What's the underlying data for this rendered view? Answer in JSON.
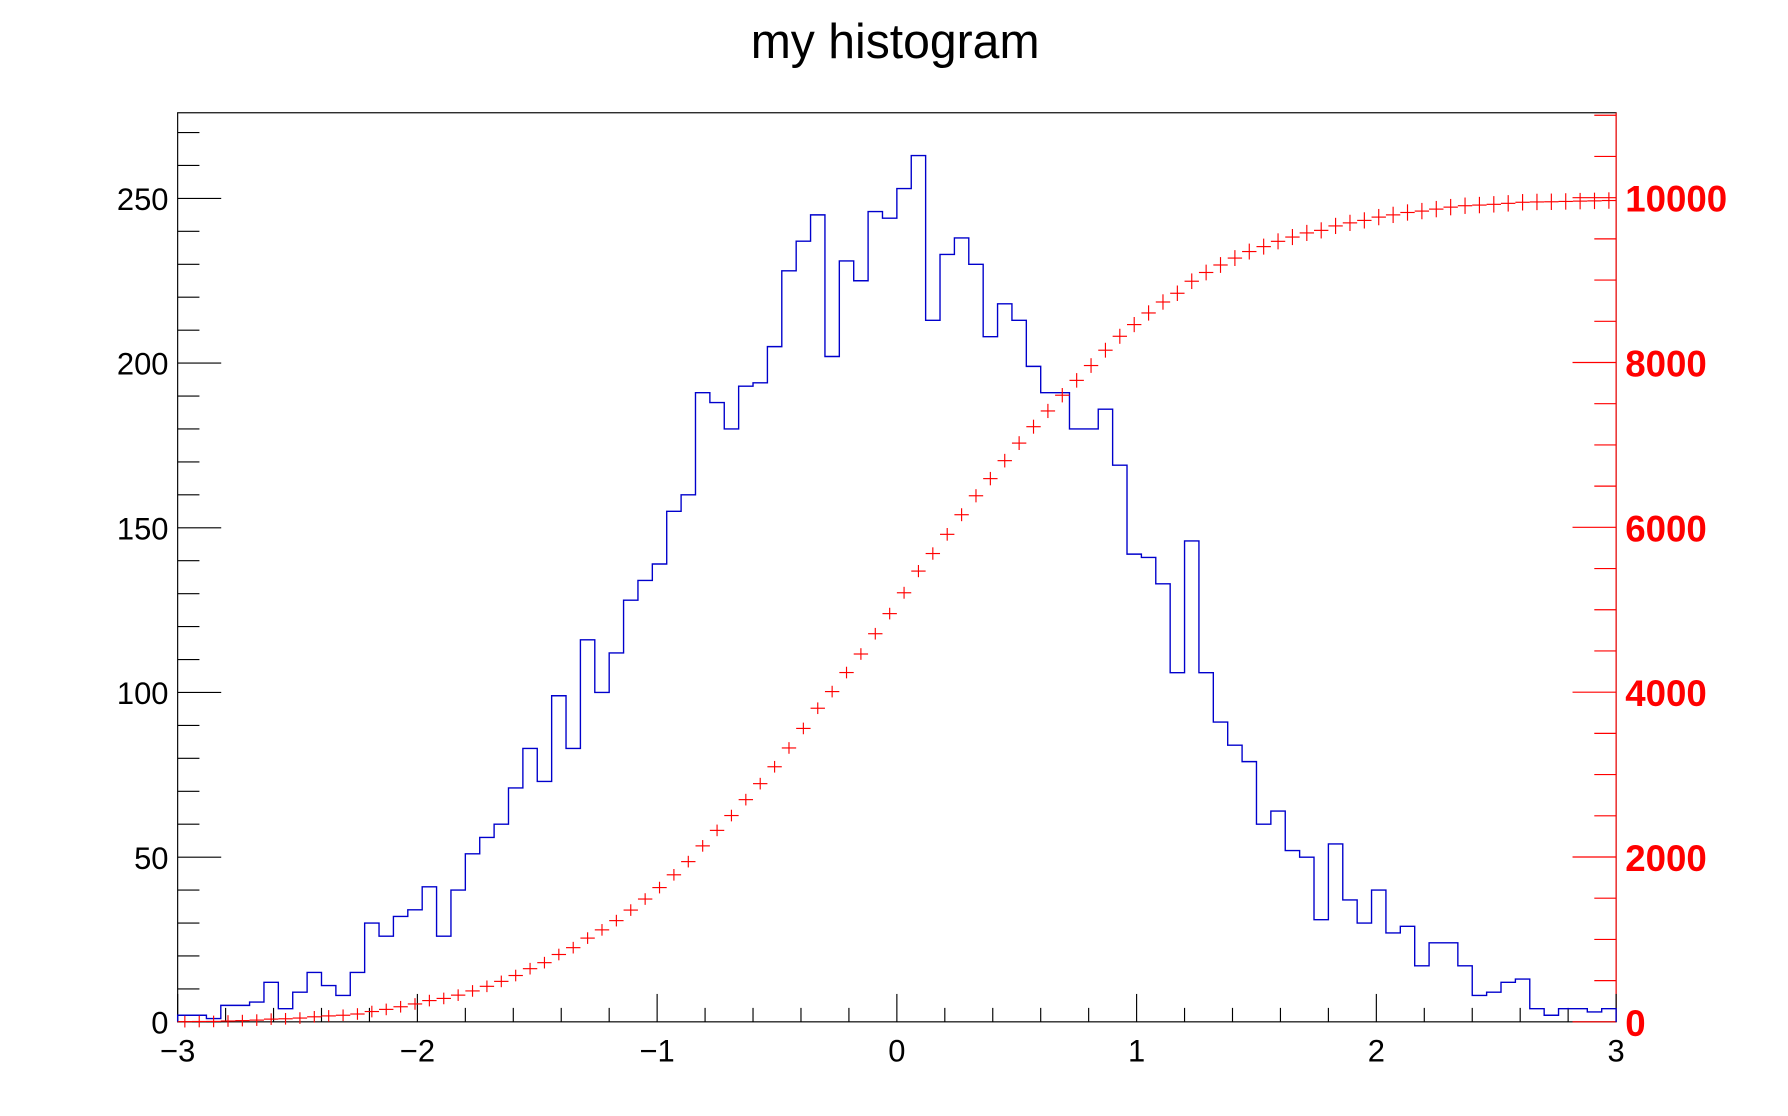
{
  "chart_data": {
    "type": "bar",
    "style": "step-histogram with cumulative overlay on right axis",
    "title": "my histogram",
    "xlabel": "",
    "ylabel": "",
    "xlim": [
      -3,
      3
    ],
    "ylim": [
      0,
      276
    ],
    "y2lim": [
      0,
      11030
    ],
    "bins": 100,
    "bin_width": 0.06,
    "x_ticks": [
      "-3",
      "-2",
      "-1",
      "0",
      "1",
      "2",
      "3"
    ],
    "y_ticks": [
      "0",
      "50",
      "100",
      "150",
      "200",
      "250"
    ],
    "y2_ticks": [
      "0",
      "2000",
      "4000",
      "6000",
      "8000",
      "10000"
    ],
    "grid": false,
    "series": [
      {
        "type": "step",
        "color": "#0000cc",
        "axis": "left",
        "values": [
          2,
          2,
          1,
          5,
          5,
          6,
          12,
          4,
          9,
          15,
          11,
          8,
          15,
          30,
          26,
          32,
          34,
          41,
          26,
          40,
          51,
          56,
          60,
          71,
          83,
          73,
          99,
          83,
          116,
          100,
          112,
          128,
          134,
          139,
          155,
          160,
          191,
          188,
          180,
          193,
          194,
          205,
          228,
          237,
          245,
          202,
          231,
          225,
          246,
          244,
          253,
          263,
          213,
          233,
          238,
          230,
          208,
          218,
          213,
          199,
          191,
          191,
          180,
          180,
          186,
          169,
          142,
          141,
          133,
          106,
          146,
          106,
          91,
          84,
          79,
          60,
          64,
          52,
          50,
          31,
          54,
          37,
          30,
          40,
          27,
          29,
          17,
          24,
          24,
          17,
          8,
          9,
          12,
          13,
          4,
          2,
          4,
          4,
          3,
          4
        ]
      },
      {
        "type": "cumulative-markers",
        "color": "#ff0000",
        "axis": "right",
        "cumulative_of": 0
      }
    ]
  }
}
